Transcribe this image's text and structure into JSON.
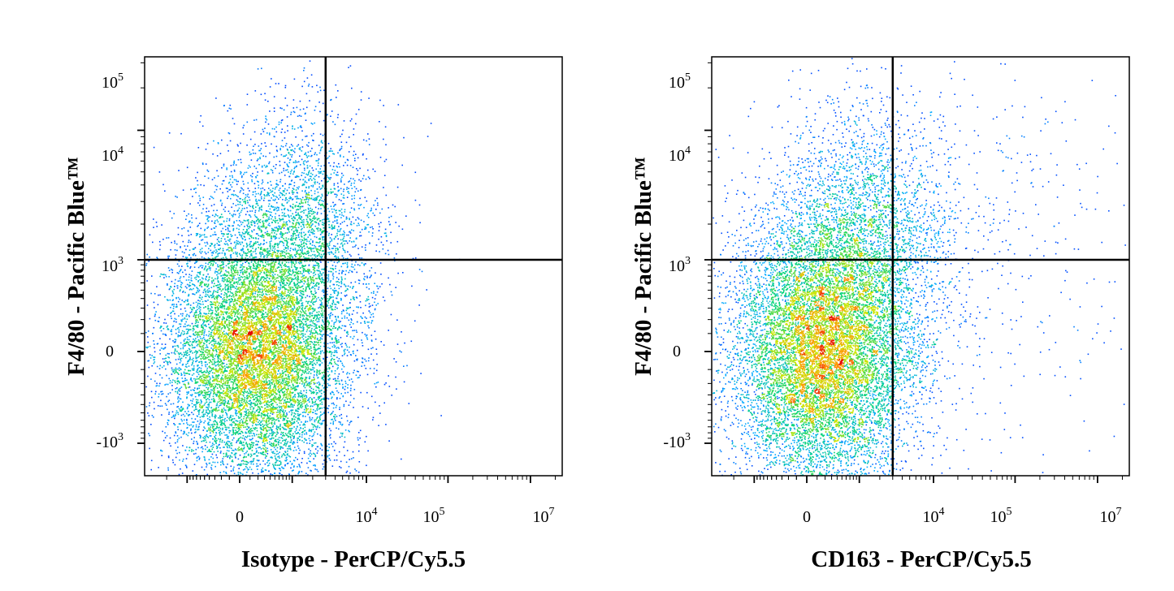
{
  "chart_data": [
    {
      "type": "scatter",
      "xlabel": "Isotype - PerCP/Cy5.5",
      "ylabel": "F4/80 - Pacific Blue™",
      "x_ticks": [
        {
          "base": "0",
          "exp": ""
        },
        {
          "base": "10",
          "exp": "4"
        },
        {
          "base": "10",
          "exp": "5"
        },
        {
          "base": "10",
          "exp": "7"
        }
      ],
      "y_ticks": [
        {
          "base": "10",
          "exp": "5"
        },
        {
          "base": "10",
          "exp": "4"
        },
        {
          "base": "10",
          "exp": "3"
        },
        {
          "base": "0",
          "exp": ""
        },
        {
          "base": "-10",
          "exp": "3"
        }
      ],
      "gate": {
        "x": 3000,
        "y": 1000
      },
      "populations": [
        {
          "n": 11000,
          "cx": 150,
          "sx": 0.55,
          "cy": 0,
          "sy": 0.48
        },
        {
          "n": 2400,
          "cx": 1300,
          "sx": 0.5,
          "cy": 1700,
          "sy": 0.45
        },
        {
          "n": 120,
          "cx": 3800,
          "sx": 0.5,
          "cy": 200,
          "sy": 0.9
        }
      ]
    },
    {
      "type": "scatter",
      "xlabel": "CD163 - PerCP/Cy5.5",
      "ylabel": "F4/80 - Pacific Blue™",
      "x_ticks": [
        {
          "base": "0",
          "exp": ""
        },
        {
          "base": "10",
          "exp": "4"
        },
        {
          "base": "10",
          "exp": "5"
        },
        {
          "base": "10",
          "exp": "7"
        }
      ],
      "y_ticks": [
        {
          "base": "10",
          "exp": "5"
        },
        {
          "base": "10",
          "exp": "4"
        },
        {
          "base": "10",
          "exp": "3"
        },
        {
          "base": "0",
          "exp": ""
        },
        {
          "base": "-10",
          "exp": "3"
        }
      ],
      "gate": {
        "x": 3000,
        "y": 1000
      },
      "populations": [
        {
          "n": 11000,
          "cx": 150,
          "sx": 0.55,
          "cy": 0,
          "sy": 0.48
        },
        {
          "n": 2600,
          "cx": 1300,
          "sx": 0.55,
          "cy": 1700,
          "sy": 0.45
        },
        {
          "n": 450,
          "cx": 40000,
          "sx": 1.0,
          "cy": 1400,
          "sy": 0.8
        }
      ]
    }
  ]
}
